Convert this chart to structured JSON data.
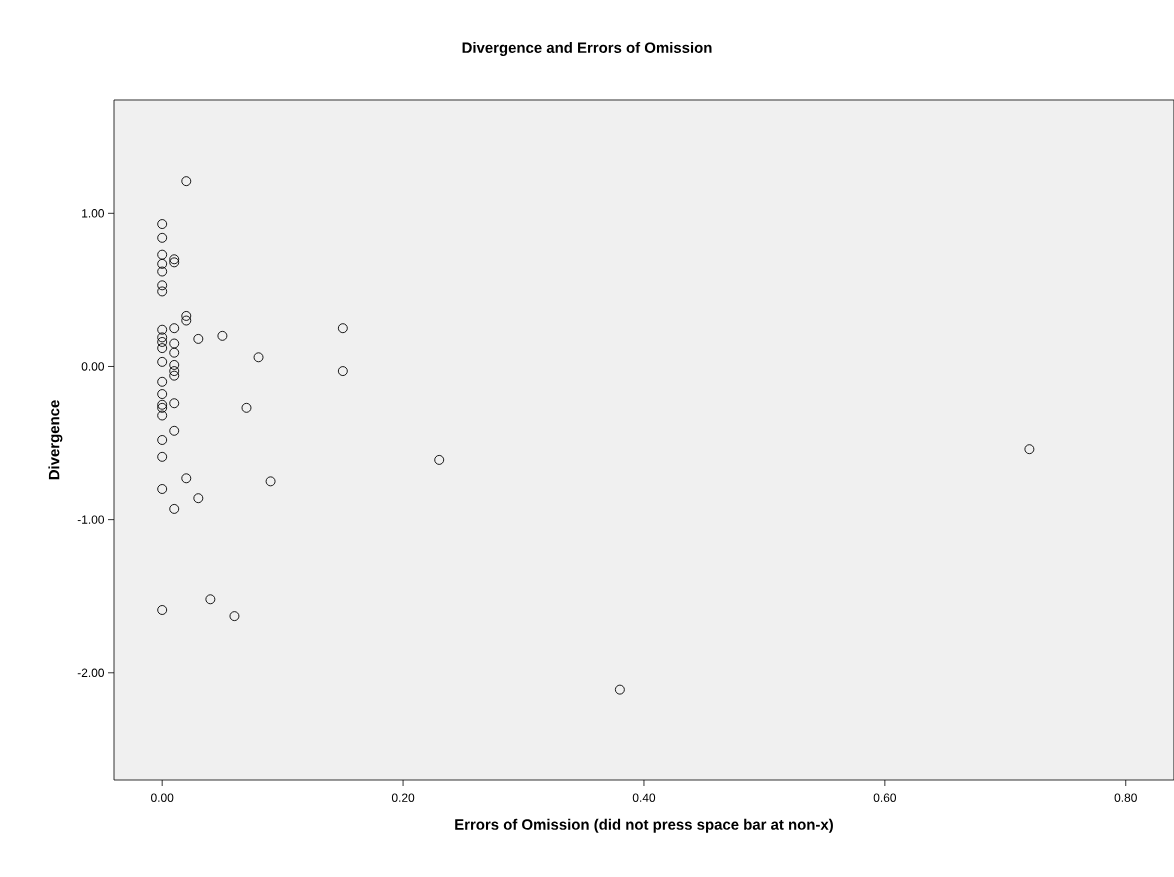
{
  "chart_data": {
    "type": "scatter",
    "title": "Divergence and Errors of Omission",
    "xlabel": "Errors of Omission (did not press space bar at non-x)",
    "ylabel": "Divergence",
    "series": [
      {
        "color": "#000000",
        "x": [
          0,
          0,
          0,
          0,
          0,
          0,
          0,
          0,
          0,
          0,
          0,
          0,
          0,
          0,
          0,
          0,
          0,
          0,
          0,
          0,
          0,
          0.01,
          0.01,
          0.01,
          0.01,
          0.01,
          0.01,
          0.01,
          0.01,
          0.01,
          0.01,
          0.01,
          0.02,
          0.02,
          0.02,
          0.02,
          0.03,
          0.03,
          0.04,
          0.05,
          0.06,
          0.07,
          0.08,
          0.09,
          0.15,
          0.15,
          0.23,
          0.38,
          0.72
        ],
        "values": [
          0.93,
          0.84,
          0.73,
          0.67,
          0.62,
          0.53,
          0.49,
          0.24,
          0.19,
          0.16,
          0.12,
          0.03,
          -0.1,
          -0.18,
          -0.25,
          -0.27,
          -0.32,
          -0.48,
          -0.59,
          -0.8,
          -1.59,
          0.7,
          0.68,
          0.25,
          0.15,
          0.09,
          0.01,
          -0.03,
          -0.06,
          -0.24,
          -0.42,
          -0.93,
          1.21,
          0.33,
          0.3,
          -0.73,
          0.18,
          -0.86,
          -1.52,
          0.2,
          -1.63,
          -0.27,
          0.06,
          -0.75,
          0.25,
          -0.03,
          -0.61,
          -2.11,
          -0.54
        ]
      }
    ],
    "xlim": [
      -0.04,
      0.84
    ],
    "ylim": [
      -2.7,
      1.74
    ],
    "xticks": [
      {
        "value": 0,
        "label": "0.00"
      },
      {
        "value": 0.2,
        "label": "0.20"
      },
      {
        "value": 0.4,
        "label": "0.40"
      },
      {
        "value": 0.6,
        "label": "0.60"
      },
      {
        "value": 0.8,
        "label": "0.80"
      }
    ],
    "yticks": [
      {
        "value": -2,
        "label": "-2.00"
      },
      {
        "value": -1,
        "label": "-1.00"
      },
      {
        "value": 0,
        "label": "0.00"
      },
      {
        "value": 1,
        "label": "1.00"
      }
    ],
    "marker": "circle",
    "grid": false
  }
}
